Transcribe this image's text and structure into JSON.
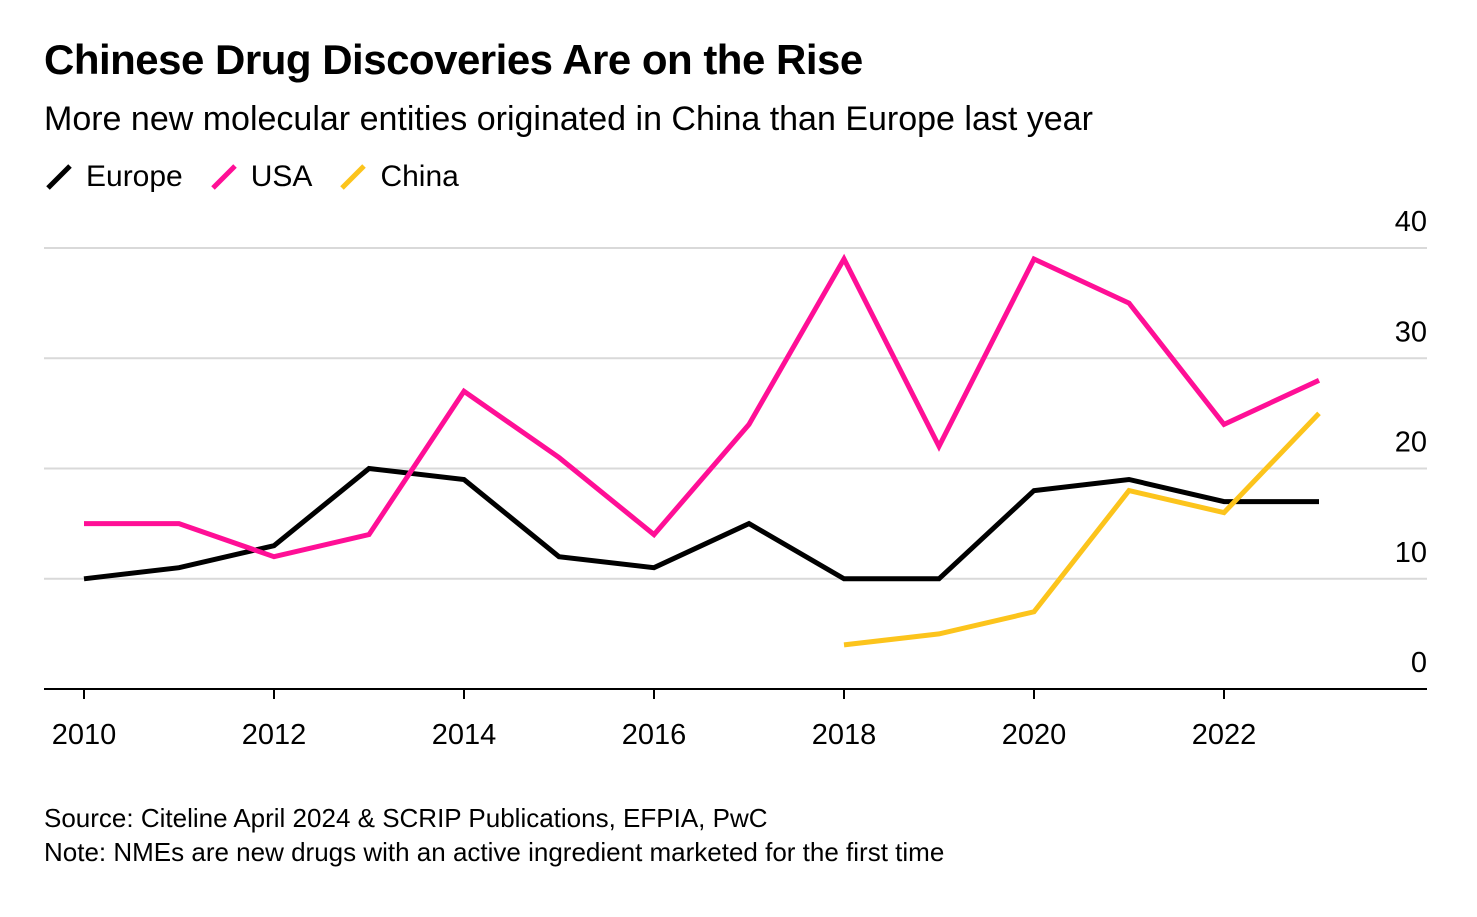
{
  "chart_data": {
    "type": "line",
    "title": "Chinese Drug Discoveries Are on the Rise",
    "subtitle": "More new molecular entities originated in China than Europe last year",
    "x": [
      2010,
      2011,
      2012,
      2013,
      2014,
      2015,
      2016,
      2017,
      2018,
      2019,
      2020,
      2021,
      2022,
      2023
    ],
    "x_ticks": [
      "2010",
      "2012",
      "2014",
      "2016",
      "2018",
      "2020",
      "2022"
    ],
    "y_ticks": [
      "0",
      "10",
      "20",
      "30",
      "40"
    ],
    "ylim": [
      0,
      40
    ],
    "xlim": [
      2010,
      2023
    ],
    "grid": true,
    "y_axis_side": "right",
    "legend_placement": "top-left",
    "series": [
      {
        "name": "Europe",
        "color": "#000000",
        "values": [
          10,
          11,
          13,
          20,
          19,
          12,
          11,
          15,
          10,
          10,
          18,
          19,
          17,
          17
        ]
      },
      {
        "name": "USA",
        "color": "#ff0f96",
        "values": [
          15,
          15,
          12,
          14,
          27,
          21,
          14,
          24,
          39,
          22,
          39,
          35,
          24,
          28
        ]
      },
      {
        "name": "China",
        "color": "#fcc41c",
        "values": [
          null,
          null,
          null,
          null,
          null,
          null,
          null,
          null,
          4,
          5,
          7,
          18,
          16,
          25
        ]
      }
    ],
    "source": "Source: Citeline April 2024 & SCRIP Publications, EFPIA, PwC",
    "note": "Note: NMEs are new drugs with an active ingredient marketed for the first time"
  }
}
